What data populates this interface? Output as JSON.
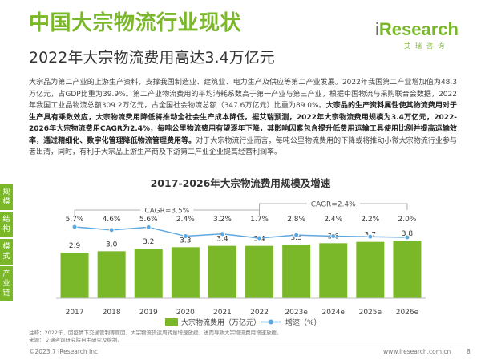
{
  "header": {
    "title": "中国大宗物流行业现状",
    "subtitle": "2022年大宗物流费用高达3.4万亿元"
  },
  "logo": {
    "prefix": "i",
    "word": "Research",
    "sub": "艾瑞咨询"
  },
  "body": {
    "p1": "大宗品为第二产业的上游生产资料，支撑我国制造业、建筑业、电力生产及供应等第二产业发展。2022年我国第二产业增加值为48.3万亿元，占GDP比重为39.9%。第二产业物流费用的平均消耗系数高于第一产业与第三产业，根据中国物流与采购联合会数据，2022年我国工业品物流总额309.2万亿元，占全国社会物流总额（347.6万亿元）比重为89.0%。",
    "b1": "大宗品的生产资料属性使其物流费用对于生产具有乘数效应，大宗物流费用降低将推动全社会生产成本降低。据艾瑞预测，2022年大宗物流费用规模为3.4万亿元，2022-2026年大宗物流费用CAGR为2.4%，每吨公里物流费用有望逐年下降，其影响因素包含提升低费用运输工具使用比例并提高运输效率，通过精细化、数字化管理降低物流管理费用等。",
    "p2": "对于大宗物流行业而言，每吨公里物流费用的下降或将推动小微大宗物流行业参与者出清，同时，有利于大宗品上游生产商及下游第二产业企业提高经营利润率。"
  },
  "side_tabs": [
    {
      "label": "规模",
      "active": true
    },
    {
      "label": "结构",
      "active": true
    },
    {
      "label": "模式",
      "active": true
    },
    {
      "label": "产业链",
      "active": true
    }
  ],
  "chart_data": {
    "type": "bar",
    "title": "2017-2026年大宗物流费用规模及增速",
    "categories": [
      "2017",
      "2018",
      "2019",
      "2020",
      "2021",
      "2022",
      "2023e",
      "2024e",
      "2025e",
      "2026e"
    ],
    "series": [
      {
        "name": "大宗物流费用（万亿元）",
        "type": "bar",
        "values": [
          2.9,
          3.0,
          3.2,
          3.3,
          3.4,
          3.4,
          3.5,
          3.6,
          3.7,
          3.8
        ],
        "color": "#7ab829"
      },
      {
        "name": "增速（%）",
        "type": "line",
        "values": [
          5.7,
          4.6,
          5.6,
          2.4,
          3.2,
          1.7,
          2.8,
          2.4,
          2.2,
          2.0
        ],
        "labels": [
          "5.7%",
          "4.6%",
          "5.6%",
          "2.4%",
          "3.2%",
          "1.7%",
          "2.8%",
          "2.4%",
          "2.2%",
          "2.0%"
        ],
        "color": "#5ea8e0"
      }
    ],
    "annotations": [
      {
        "text": "CAGR=3.5%",
        "from": "2017",
        "to": "2022"
      },
      {
        "text": "CAGR=2.4%",
        "from": "2022",
        "to": "2026e"
      }
    ],
    "legend": "bottom"
  },
  "note": {
    "line1": "注释：2022年，因疫情下交通管制等原因，大宗物流货运周转量增速放缓，进而导致大宗物流费用增速放缓。",
    "line2": "来源：艾瑞咨询研究院自主研究及绘制。"
  },
  "footer": {
    "copyright": "©2023.7 iResearch Inc",
    "url": "www.iresearch.com.cn",
    "page": "8"
  }
}
